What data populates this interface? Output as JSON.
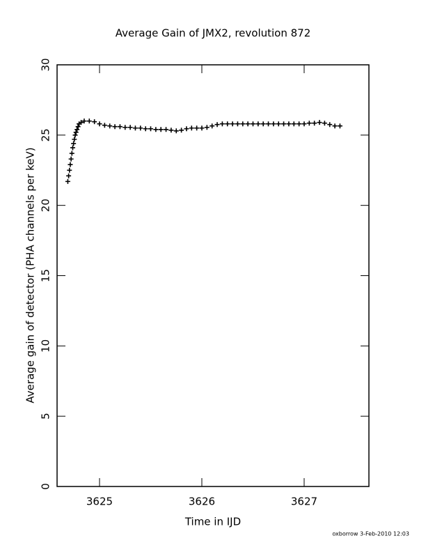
{
  "chart_data": {
    "type": "scatter",
    "title": "Average Gain of JMX2, revolution 872",
    "x_label": "Time in IJD",
    "y_label": "Average gain of detector (PHA channels per keV)",
    "footer": "oxborrow  3-Feb-2010 12:03",
    "color": "#000000",
    "marker": "+",
    "xlim": [
      3624.585,
      3627.633
    ],
    "ylim": [
      0,
      30
    ],
    "xticks": [
      3625,
      3626,
      3627
    ],
    "yticks": [
      0,
      5,
      10,
      15,
      20,
      25,
      30
    ],
    "x": [
      3624.69,
      3624.698,
      3624.706,
      3624.714,
      3624.722,
      3624.73,
      3624.738,
      3624.746,
      3624.754,
      3624.762,
      3624.77,
      3624.78,
      3624.79,
      3624.8,
      3624.82,
      3624.85,
      3624.9,
      3624.95,
      3625.0,
      3625.05,
      3625.1,
      3625.15,
      3625.2,
      3625.25,
      3625.3,
      3625.35,
      3625.4,
      3625.45,
      3625.5,
      3625.55,
      3625.6,
      3625.65,
      3625.7,
      3625.75,
      3625.8,
      3625.85,
      3625.9,
      3625.95,
      3626.0,
      3626.05,
      3626.1,
      3626.15,
      3626.2,
      3626.25,
      3626.3,
      3626.35,
      3626.4,
      3626.45,
      3626.5,
      3626.55,
      3626.6,
      3626.65,
      3626.7,
      3626.75,
      3626.8,
      3626.85,
      3626.9,
      3626.95,
      3627.0,
      3627.05,
      3627.1,
      3627.15,
      3627.2,
      3627.25,
      3627.3,
      3627.35
    ],
    "values": [
      21.7,
      22.1,
      22.5,
      22.9,
      23.3,
      23.7,
      24.1,
      24.4,
      24.7,
      25.0,
      25.2,
      25.4,
      25.6,
      25.8,
      25.9,
      26.0,
      26.0,
      25.95,
      25.8,
      25.7,
      25.65,
      25.6,
      25.6,
      25.55,
      25.55,
      25.5,
      25.5,
      25.45,
      25.45,
      25.4,
      25.4,
      25.4,
      25.35,
      25.3,
      25.35,
      25.45,
      25.5,
      25.5,
      25.5,
      25.55,
      25.65,
      25.75,
      25.8,
      25.8,
      25.8,
      25.8,
      25.8,
      25.8,
      25.8,
      25.8,
      25.8,
      25.8,
      25.8,
      25.8,
      25.8,
      25.8,
      25.8,
      25.8,
      25.8,
      25.85,
      25.85,
      25.9,
      25.85,
      25.75,
      25.65,
      25.65
    ]
  }
}
